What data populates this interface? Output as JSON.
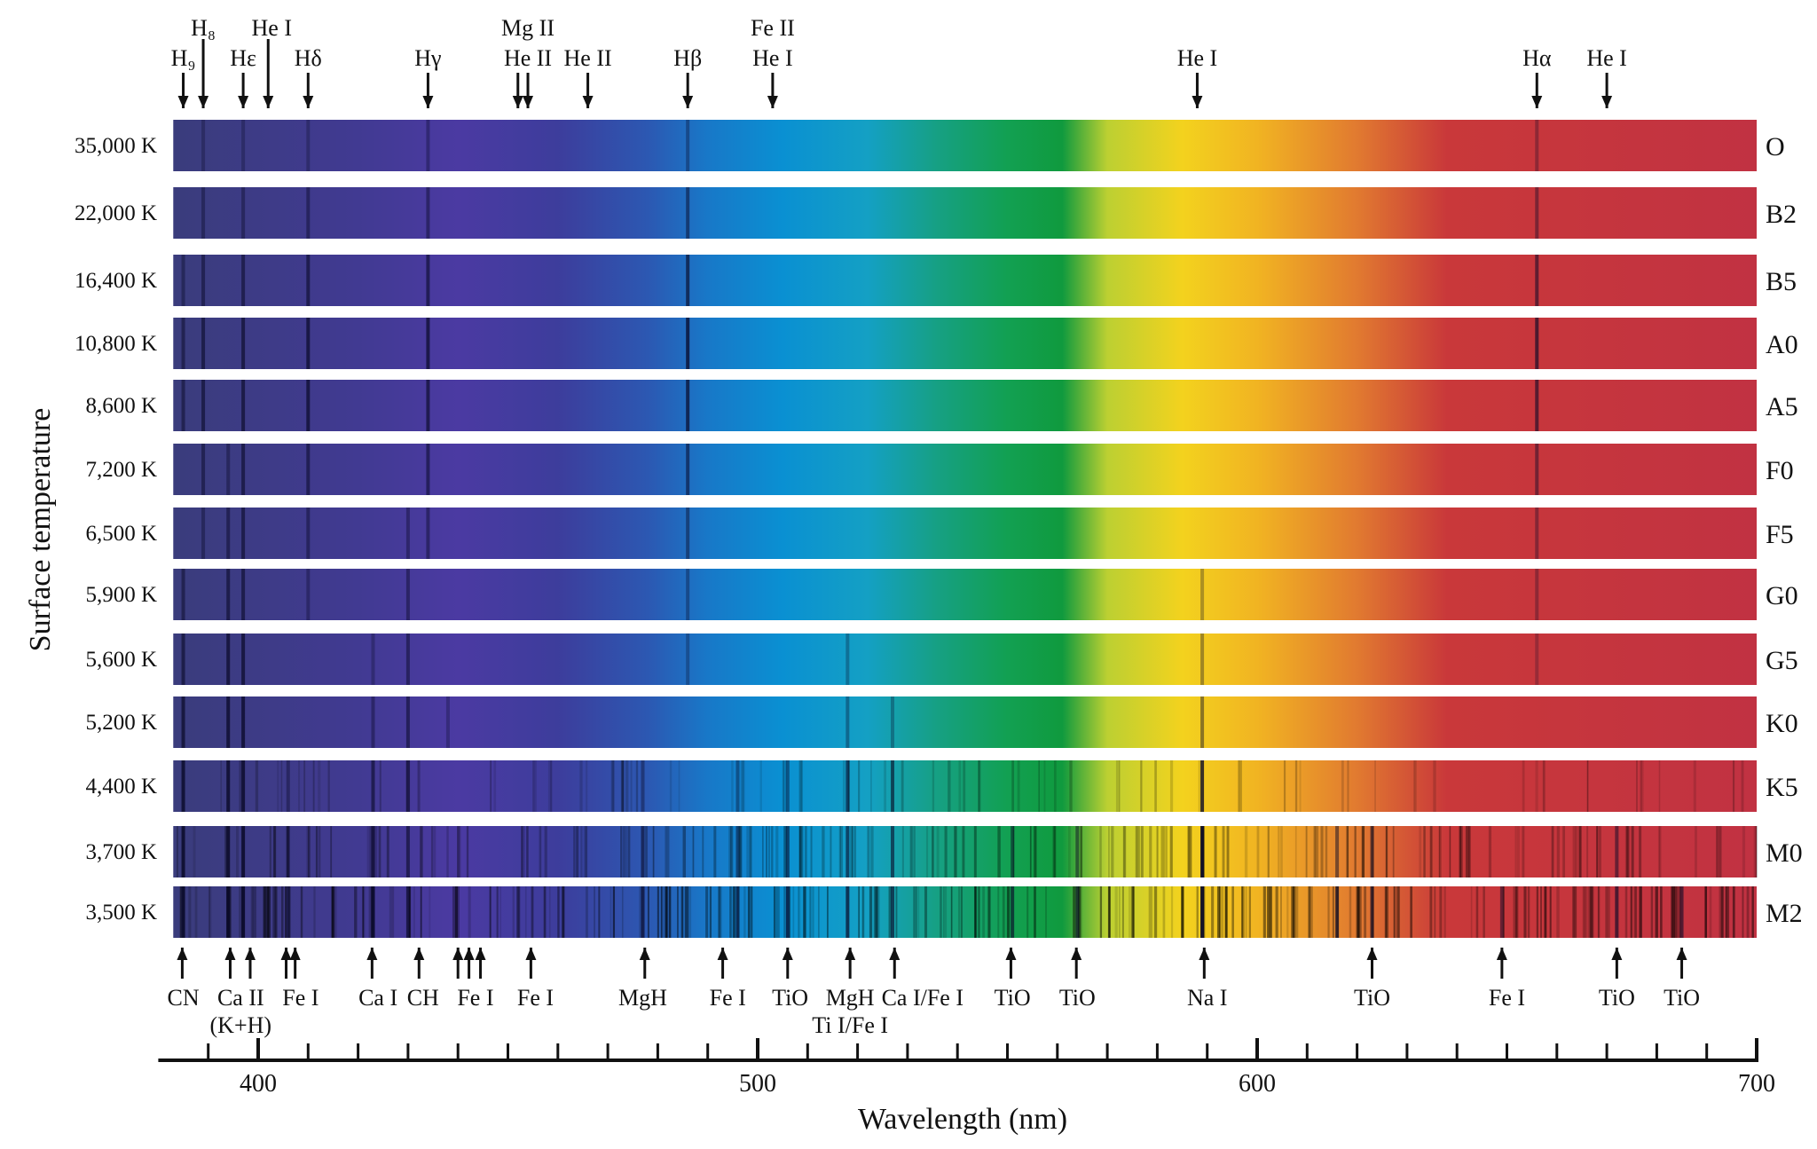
{
  "chart_data": {
    "type": "heatmap",
    "title": "",
    "xlabel": "Wavelength (nm)",
    "ylabel": "Surface temperature",
    "xlim": [
      380,
      700
    ],
    "spectrum_range": [
      383,
      700
    ],
    "x_ticks_major": [
      400,
      500,
      600,
      700
    ],
    "x_tick_step": 10,
    "rows": [
      {
        "temp": "35,000 K",
        "class": "O",
        "lines": [
          [
            389,
            0.3
          ],
          [
            397,
            0.3
          ],
          [
            410,
            0.3
          ],
          [
            434,
            0.35
          ],
          [
            486,
            0.35
          ],
          [
            656,
            0.3
          ]
        ]
      },
      {
        "temp": "22,000 K",
        "class": "B2",
        "lines": [
          [
            389,
            0.4
          ],
          [
            397,
            0.4
          ],
          [
            410,
            0.45
          ],
          [
            434,
            0.45
          ],
          [
            486,
            0.5
          ],
          [
            656,
            0.4
          ]
        ]
      },
      {
        "temp": "16,400 K",
        "class": "B5",
        "lines": [
          [
            385,
            0.4
          ],
          [
            389,
            0.5
          ],
          [
            397,
            0.55
          ],
          [
            410,
            0.6
          ],
          [
            434,
            0.6
          ],
          [
            486,
            0.65
          ],
          [
            656,
            0.55
          ]
        ]
      },
      {
        "temp": "10,800 K",
        "class": "A0",
        "lines": [
          [
            385,
            0.5
          ],
          [
            389,
            0.6
          ],
          [
            397,
            0.65
          ],
          [
            410,
            0.7
          ],
          [
            434,
            0.7
          ],
          [
            486,
            0.75
          ],
          [
            656,
            0.65
          ]
        ]
      },
      {
        "temp": "8,600 K",
        "class": "A5",
        "lines": [
          [
            385,
            0.5
          ],
          [
            389,
            0.6
          ],
          [
            397,
            0.65
          ],
          [
            410,
            0.7
          ],
          [
            434,
            0.65
          ],
          [
            486,
            0.7
          ],
          [
            656,
            0.6
          ]
        ]
      },
      {
        "temp": "7,200 K",
        "class": "F0",
        "lines": [
          [
            389,
            0.5
          ],
          [
            394,
            0.4
          ],
          [
            397,
            0.6
          ],
          [
            410,
            0.55
          ],
          [
            434,
            0.55
          ],
          [
            486,
            0.55
          ],
          [
            656,
            0.45
          ]
        ]
      },
      {
        "temp": "6,500 K",
        "class": "F5",
        "lines": [
          [
            389,
            0.4
          ],
          [
            394,
            0.5
          ],
          [
            397,
            0.6
          ],
          [
            410,
            0.45
          ],
          [
            430,
            0.4
          ],
          [
            434,
            0.45
          ],
          [
            486,
            0.45
          ],
          [
            656,
            0.35
          ]
        ]
      },
      {
        "temp": "5,900 K",
        "class": "G0",
        "lines": [
          [
            385,
            0.5
          ],
          [
            394,
            0.6
          ],
          [
            397,
            0.6
          ],
          [
            410,
            0.35
          ],
          [
            430,
            0.45
          ],
          [
            486,
            0.35
          ],
          [
            589,
            0.3
          ],
          [
            656,
            0.3
          ]
        ]
      },
      {
        "temp": "5,600 K",
        "class": "G5",
        "lines": [
          [
            385,
            0.6
          ],
          [
            394,
            0.7
          ],
          [
            397,
            0.7
          ],
          [
            423,
            0.3
          ],
          [
            430,
            0.5
          ],
          [
            486,
            0.3
          ],
          [
            518,
            0.3
          ],
          [
            589,
            0.35
          ],
          [
            656,
            0.25
          ]
        ]
      },
      {
        "temp": "5,200 K",
        "class": "K0",
        "lines": [
          [
            385,
            0.7
          ],
          [
            394,
            0.75
          ],
          [
            397,
            0.75
          ],
          [
            423,
            0.4
          ],
          [
            430,
            0.55
          ],
          [
            438,
            0.3
          ],
          [
            518,
            0.35
          ],
          [
            527,
            0.3
          ],
          [
            589,
            0.45
          ]
        ]
      },
      {
        "temp": "4,400 K",
        "class": "K5",
        "lines": [
          [
            385,
            0.8
          ],
          [
            394,
            0.8
          ],
          [
            397,
            0.8
          ],
          [
            406,
            0.4
          ],
          [
            423,
            0.6
          ],
          [
            430,
            0.6
          ],
          [
            477,
            0.4
          ],
          [
            496,
            0.4
          ],
          [
            506,
            0.45
          ],
          [
            518,
            0.6
          ],
          [
            527,
            0.5
          ],
          [
            589,
            0.8
          ]
        ]
      },
      {
        "temp": "3,700 K",
        "class": "M0",
        "lines": [
          [
            385,
            0.85
          ],
          [
            394,
            0.85
          ],
          [
            397,
            0.85
          ],
          [
            406,
            0.5
          ],
          [
            423,
            0.75
          ],
          [
            430,
            0.6
          ],
          [
            477,
            0.6
          ],
          [
            496,
            0.5
          ],
          [
            506,
            0.6
          ],
          [
            518,
            0.6
          ],
          [
            527,
            0.6
          ],
          [
            551,
            0.5
          ],
          [
            564,
            0.5
          ],
          [
            589,
            0.9
          ],
          [
            616,
            0.5
          ],
          [
            623,
            0.5
          ],
          [
            672,
            0.5
          ]
        ]
      },
      {
        "temp": "3,500 K",
        "class": "M2",
        "lines": [
          [
            385,
            0.9
          ],
          [
            394,
            0.9
          ],
          [
            397,
            0.9
          ],
          [
            406,
            0.6
          ],
          [
            423,
            0.9
          ],
          [
            430,
            0.7
          ],
          [
            477,
            0.7
          ],
          [
            496,
            0.65
          ],
          [
            506,
            0.75
          ],
          [
            518,
            0.7
          ],
          [
            527,
            0.65
          ],
          [
            551,
            0.65
          ],
          [
            564,
            0.7
          ],
          [
            589,
            0.95
          ],
          [
            616,
            0.7
          ],
          [
            623,
            0.65
          ],
          [
            649,
            0.5
          ],
          [
            672,
            0.65
          ],
          [
            685,
            0.6
          ]
        ]
      }
    ],
    "top_annotations": [
      {
        "nm": 385,
        "label": "H₉",
        "line": 2,
        "long": false
      },
      {
        "nm": 389,
        "label": "H₈",
        "line": 1,
        "long": true
      },
      {
        "nm": 397,
        "label": "Hε",
        "line": 2,
        "long": false
      },
      {
        "nm": 402,
        "label": "He  I",
        "line": 1,
        "long": true
      },
      {
        "nm": 410,
        "label": "Hδ",
        "line": 2,
        "long": false
      },
      {
        "nm": 434,
        "label": "Hγ",
        "line": 2,
        "long": false
      },
      {
        "nm": 452,
        "label": "",
        "line": 2,
        "long": false
      },
      {
        "nm": 454,
        "label": "He II",
        "line": 2,
        "long": false,
        "extra": "Mg II"
      },
      {
        "nm": 466,
        "label": "He II",
        "line": 2,
        "long": false
      },
      {
        "nm": 486,
        "label": "Hβ",
        "line": 2,
        "long": false
      },
      {
        "nm": 503,
        "label": "He I",
        "line": 2,
        "long": false,
        "extra": "Fe II"
      },
      {
        "nm": 588,
        "label": "He I",
        "line": 2,
        "long": false
      },
      {
        "nm": 656,
        "label": "Hα",
        "line": 2,
        "long": false
      },
      {
        "nm": 670,
        "label": "He I",
        "line": 2,
        "long": false
      }
    ],
    "bottom_annotations": [
      {
        "nm": [
          384.8
        ],
        "label": "CN",
        "label_nm": 385
      },
      {
        "nm": [
          394.4,
          398.4
        ],
        "label": "Ca II",
        "sub": "(K+H)",
        "label_nm": 396.5
      },
      {
        "nm": [
          405.6,
          407.4
        ],
        "label": "Fe I",
        "label_nm": 408.5
      },
      {
        "nm": [
          422.8
        ],
        "label": "Ca I",
        "label_nm": 424
      },
      {
        "nm": [
          432.2
        ],
        "label": "CH",
        "label_nm": 433
      },
      {
        "nm": [
          440,
          442.2,
          444.5
        ],
        "label": "Fe I",
        "label_nm": 443.5
      },
      {
        "nm": [
          454.6
        ],
        "label": "Fe I",
        "label_nm": 455.5
      },
      {
        "nm": [
          477.4
        ],
        "label": "MgH",
        "label_nm": 477
      },
      {
        "nm": [
          493
        ],
        "label": "Fe I",
        "label_nm": 494
      },
      {
        "nm": [
          506
        ],
        "label": "TiO",
        "label_nm": 506.5
      },
      {
        "nm": [
          518.5
        ],
        "label": "MgH",
        "sub": "Ti I/Fe I",
        "label_nm": 518.5
      },
      {
        "nm": [
          527.4
        ],
        "label": "Ca I/Fe I",
        "label_nm": 533
      },
      {
        "nm": [
          550.7
        ],
        "label": "TiO",
        "label_nm": 551
      },
      {
        "nm": [
          563.8
        ],
        "label": "TiO",
        "label_nm": 564
      },
      {
        "nm": [
          589.4
        ],
        "label": "Na I",
        "label_nm": 590
      },
      {
        "nm": [
          623
        ],
        "label": "TiO",
        "label_nm": 623
      },
      {
        "nm": [
          649
        ],
        "label": "Fe I",
        "label_nm": 650
      },
      {
        "nm": [
          672
        ],
        "label": "TiO",
        "label_nm": 672
      },
      {
        "nm": [
          685
        ],
        "label": "TiO",
        "label_nm": 685
      }
    ],
    "gradient": [
      [
        383,
        "#3a3c7c"
      ],
      [
        420,
        "#413a92"
      ],
      [
        440,
        "#4b3aa2"
      ],
      [
        460,
        "#3d3d9c"
      ],
      [
        478,
        "#2c58b2"
      ],
      [
        490,
        "#1878c8"
      ],
      [
        505,
        "#0a90d2"
      ],
      [
        522,
        "#14a0c4"
      ],
      [
        536,
        "#16a083"
      ],
      [
        550,
        "#12a052"
      ],
      [
        561,
        "#109a3e"
      ],
      [
        570,
        "#bcd032"
      ],
      [
        585,
        "#f3d21e"
      ],
      [
        600,
        "#f1b422"
      ],
      [
        620,
        "#e17a30"
      ],
      [
        638,
        "#c9383a"
      ],
      [
        700,
        "#c13242"
      ]
    ]
  }
}
